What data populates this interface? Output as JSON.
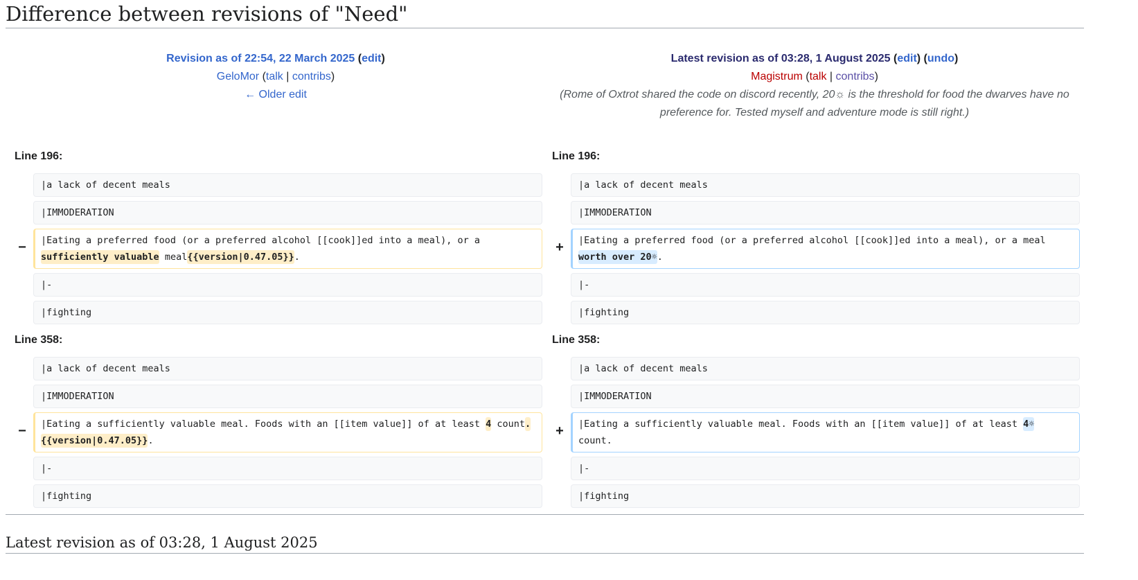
{
  "page_title": "Difference between revisions of \"Need\"",
  "old": {
    "revision_label": "Revision as of 22:54, 22 March 2025",
    "edit": "edit",
    "user": "GeloMor",
    "talk": "talk",
    "contribs": "contribs",
    "older_edit": "← Older edit"
  },
  "new": {
    "revision_label": "Latest revision as of 03:28, 1 August 2025",
    "edit": "edit",
    "undo": "undo",
    "user": "Magistrum",
    "talk": "talk",
    "contribs": "contribs",
    "summary": "(Rome of Oxtrot shared the code on discord recently, 20☼ is the threshold for food the dwarves have no preference for. Tested myself and adventure mode is still right.)"
  },
  "markers": {
    "del": "−",
    "add": "+"
  },
  "hunks": [
    {
      "line_left": "Line 196:",
      "line_right": "Line 196:",
      "ctx1": "|a lack of decent meals",
      "ctx2": "|IMMODERATION",
      "del": {
        "a": "|Eating a preferred food (or a preferred alcohol [[cook]]ed into a meal), or a ",
        "h1": "sufficiently valuable",
        "b": " meal",
        "h2": "{{version|0.47.05}}",
        "c": "."
      },
      "add": {
        "a": "|Eating a preferred food (or a preferred alcohol [[cook]]ed into a meal), or a meal ",
        "h1": "worth over 20☼",
        "b": "."
      },
      "ctx3": "|-",
      "ctx4": "|fighting"
    },
    {
      "line_left": "Line 358:",
      "line_right": "Line 358:",
      "ctx1": "|a lack of decent meals",
      "ctx2": "|IMMODERATION",
      "del": {
        "a": "|Eating a sufficiently valuable meal. Foods with an [[item value]] of at least ",
        "h1": "4",
        "b": " count",
        "h2": ".",
        "c": " ",
        "h3": "{{version|0.47.05}}",
        "d": "."
      },
      "add": {
        "a": "|Eating a sufficiently valuable meal. Foods with an [[item value]] of at least ",
        "h1": "4☼",
        "b": " count."
      },
      "ctx3": "|-",
      "ctx4": "|fighting"
    }
  ],
  "footer_heading": "Latest revision as of 03:28, 1 August 2025"
}
